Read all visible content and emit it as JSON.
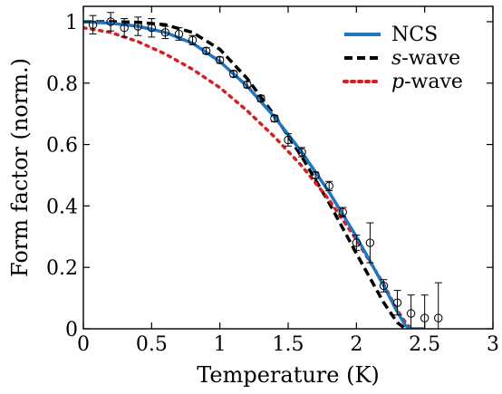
{
  "chart_data": {
    "type": "line",
    "xlabel": "Temperature (K)",
    "ylabel": "Form factor (norm.)",
    "xlim": [
      0,
      3
    ],
    "ylim": [
      0,
      1.05
    ],
    "xticks": [
      0,
      0.5,
      1,
      1.5,
      2,
      2.5,
      3
    ],
    "xtick_labels": [
      "0",
      "0.5",
      "1",
      "1.5",
      "2",
      "2.5",
      "3"
    ],
    "yticks": [
      0,
      0.2,
      0.4,
      0.6,
      0.8,
      1
    ],
    "ytick_labels": [
      "0",
      "0.2",
      "0.4",
      "0.6",
      "0.8",
      "1"
    ],
    "grid": false,
    "legend_position": "top-right",
    "series": [
      {
        "name": "NCS",
        "style": "solid",
        "color": "#1f77c4",
        "x": [
          0,
          0.2,
          0.4,
          0.6,
          0.8,
          1.0,
          1.2,
          1.4,
          1.6,
          1.8,
          2.0,
          2.2,
          2.3,
          2.36,
          2.4,
          2.5
        ],
        "y": [
          1.0,
          0.995,
          0.985,
          0.965,
          0.93,
          0.87,
          0.79,
          0.69,
          0.575,
          0.445,
          0.3,
          0.14,
          0.055,
          0.01,
          0.0,
          0.0
        ]
      },
      {
        "name": "s-wave",
        "name_italic": "s",
        "name_rest": "-wave",
        "style": "dashed",
        "color": "#000000",
        "x": [
          0,
          0.2,
          0.4,
          0.6,
          0.8,
          1.0,
          1.2,
          1.4,
          1.6,
          1.8,
          2.0,
          2.2,
          2.3,
          2.36
        ],
        "y": [
          1.0,
          1.0,
          0.998,
          0.99,
          0.965,
          0.91,
          0.815,
          0.695,
          0.56,
          0.41,
          0.245,
          0.085,
          0.02,
          0.0
        ]
      },
      {
        "name": "p-wave",
        "name_italic": "p",
        "name_rest": "-wave",
        "style": "dotted",
        "color": "#d42020",
        "x": [
          0,
          0.2,
          0.4,
          0.6,
          0.8,
          1.0,
          1.2,
          1.4,
          1.6,
          1.8,
          2.0,
          2.2,
          2.3,
          2.36,
          2.4
        ],
        "y": [
          0.98,
          0.965,
          0.935,
          0.895,
          0.845,
          0.785,
          0.71,
          0.625,
          0.53,
          0.42,
          0.29,
          0.145,
          0.06,
          0.02,
          0.0
        ]
      }
    ],
    "data_points": {
      "marker": "open-circle",
      "points": [
        {
          "x": 0.07,
          "y": 0.99,
          "err": 0.03
        },
        {
          "x": 0.2,
          "y": 1.0,
          "err": 0.03
        },
        {
          "x": 0.3,
          "y": 0.98,
          "err": 0.03
        },
        {
          "x": 0.4,
          "y": 0.985,
          "err": 0.03
        },
        {
          "x": 0.5,
          "y": 0.98,
          "err": 0.03
        },
        {
          "x": 0.6,
          "y": 0.965,
          "err": 0.02
        },
        {
          "x": 0.7,
          "y": 0.96,
          "err": 0.02
        },
        {
          "x": 0.8,
          "y": 0.94,
          "err": 0.015
        },
        {
          "x": 0.9,
          "y": 0.905,
          "err": 0.01
        },
        {
          "x": 1.0,
          "y": 0.875,
          "err": 0.01
        },
        {
          "x": 1.1,
          "y": 0.83,
          "err": 0.01
        },
        {
          "x": 1.2,
          "y": 0.795,
          "err": 0.01
        },
        {
          "x": 1.3,
          "y": 0.75,
          "err": 0.01
        },
        {
          "x": 1.4,
          "y": 0.685,
          "err": 0.01
        },
        {
          "x": 1.5,
          "y": 0.615,
          "err": 0.02
        },
        {
          "x": 1.6,
          "y": 0.575,
          "err": 0.015
        },
        {
          "x": 1.7,
          "y": 0.5,
          "err": 0.01
        },
        {
          "x": 1.8,
          "y": 0.465,
          "err": 0.015
        },
        {
          "x": 1.9,
          "y": 0.38,
          "err": 0.015
        },
        {
          "x": 2.0,
          "y": 0.28,
          "err": 0.025
        },
        {
          "x": 2.1,
          "y": 0.28,
          "err": 0.065
        },
        {
          "x": 2.2,
          "y": 0.14,
          "err": 0.02
        },
        {
          "x": 2.3,
          "y": 0.085,
          "err": 0.04
        },
        {
          "x": 2.4,
          "y": 0.05,
          "err": 0.06
        },
        {
          "x": 2.5,
          "y": 0.035,
          "err": 0.075
        },
        {
          "x": 2.6,
          "y": 0.035,
          "err": 0.115
        }
      ]
    }
  }
}
